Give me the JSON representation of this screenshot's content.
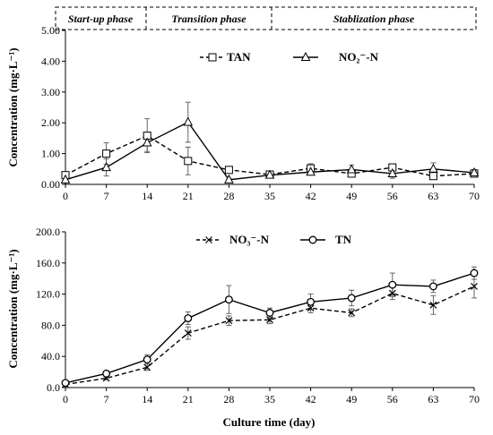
{
  "phases": {
    "labels": [
      "Start-up phase",
      "Transition phase",
      "Stablization phase"
    ],
    "boundaries": [
      0,
      14,
      35,
      70
    ]
  },
  "chart_data": [
    {
      "type": "line",
      "id": "top",
      "x": [
        0,
        7,
        14,
        21,
        28,
        35,
        42,
        49,
        56,
        63,
        70
      ],
      "x_ticks": [
        "0",
        "7",
        "14",
        "21",
        "28",
        "35",
        "42",
        "49",
        "56",
        "63",
        "70"
      ],
      "ylim": [
        0,
        5
      ],
      "y_ticks": [
        "0.00",
        "1.00",
        "2.00",
        "3.00",
        "4.00",
        "5.00"
      ],
      "xlabel": "",
      "ylabel": "Concentration (mg·L⁻¹)",
      "legend_placement": "top-center",
      "series": [
        {
          "name": "TAN",
          "style": "dashed",
          "marker": "square",
          "values": [
            0.3,
            1.0,
            1.58,
            0.76,
            0.47,
            0.32,
            0.52,
            0.35,
            0.55,
            0.27,
            0.35
          ],
          "errors": [
            0.1,
            0.35,
            0.55,
            0.45,
            0.05,
            0.05,
            0.15,
            0.1,
            0.1,
            0.05,
            0.05
          ]
        },
        {
          "name": "NO₂⁻-N",
          "style": "solid",
          "marker": "triangle",
          "values": [
            0.15,
            0.55,
            1.35,
            2.02,
            0.15,
            0.3,
            0.4,
            0.48,
            0.35,
            0.5,
            0.38
          ],
          "errors": [
            0.05,
            0.28,
            0.28,
            0.65,
            0.03,
            0.05,
            0.1,
            0.15,
            0.15,
            0.2,
            0.1
          ]
        }
      ]
    },
    {
      "type": "line",
      "id": "bottom",
      "x": [
        0,
        7,
        14,
        21,
        28,
        35,
        42,
        49,
        56,
        63,
        70
      ],
      "x_ticks": [
        "0",
        "7",
        "14",
        "21",
        "28",
        "35",
        "42",
        "49",
        "56",
        "63",
        "70"
      ],
      "ylim": [
        0,
        200
      ],
      "y_ticks": [
        "0.0",
        "40.0",
        "80.0",
        "120.0",
        "160.0",
        "200.0"
      ],
      "xlabel": "Culture time (day)",
      "ylabel": "Concentration (mg·L⁻¹)",
      "legend_placement": "top-center",
      "series": [
        {
          "name": "NO₃⁻-N",
          "style": "dashed",
          "marker": "x",
          "values": [
            4,
            12,
            26,
            70,
            86,
            87,
            102,
            96,
            121,
            106,
            130
          ],
          "errors": [
            1,
            2,
            4,
            8,
            6,
            5,
            6,
            5,
            8,
            12,
            15
          ]
        },
        {
          "name": "TN",
          "style": "solid",
          "marker": "circle",
          "values": [
            6,
            18,
            36,
            89,
            113,
            96,
            110,
            115,
            132,
            130,
            147
          ],
          "errors": [
            2,
            3,
            6,
            8,
            18,
            6,
            10,
            10,
            15,
            8,
            8
          ]
        }
      ]
    }
  ]
}
